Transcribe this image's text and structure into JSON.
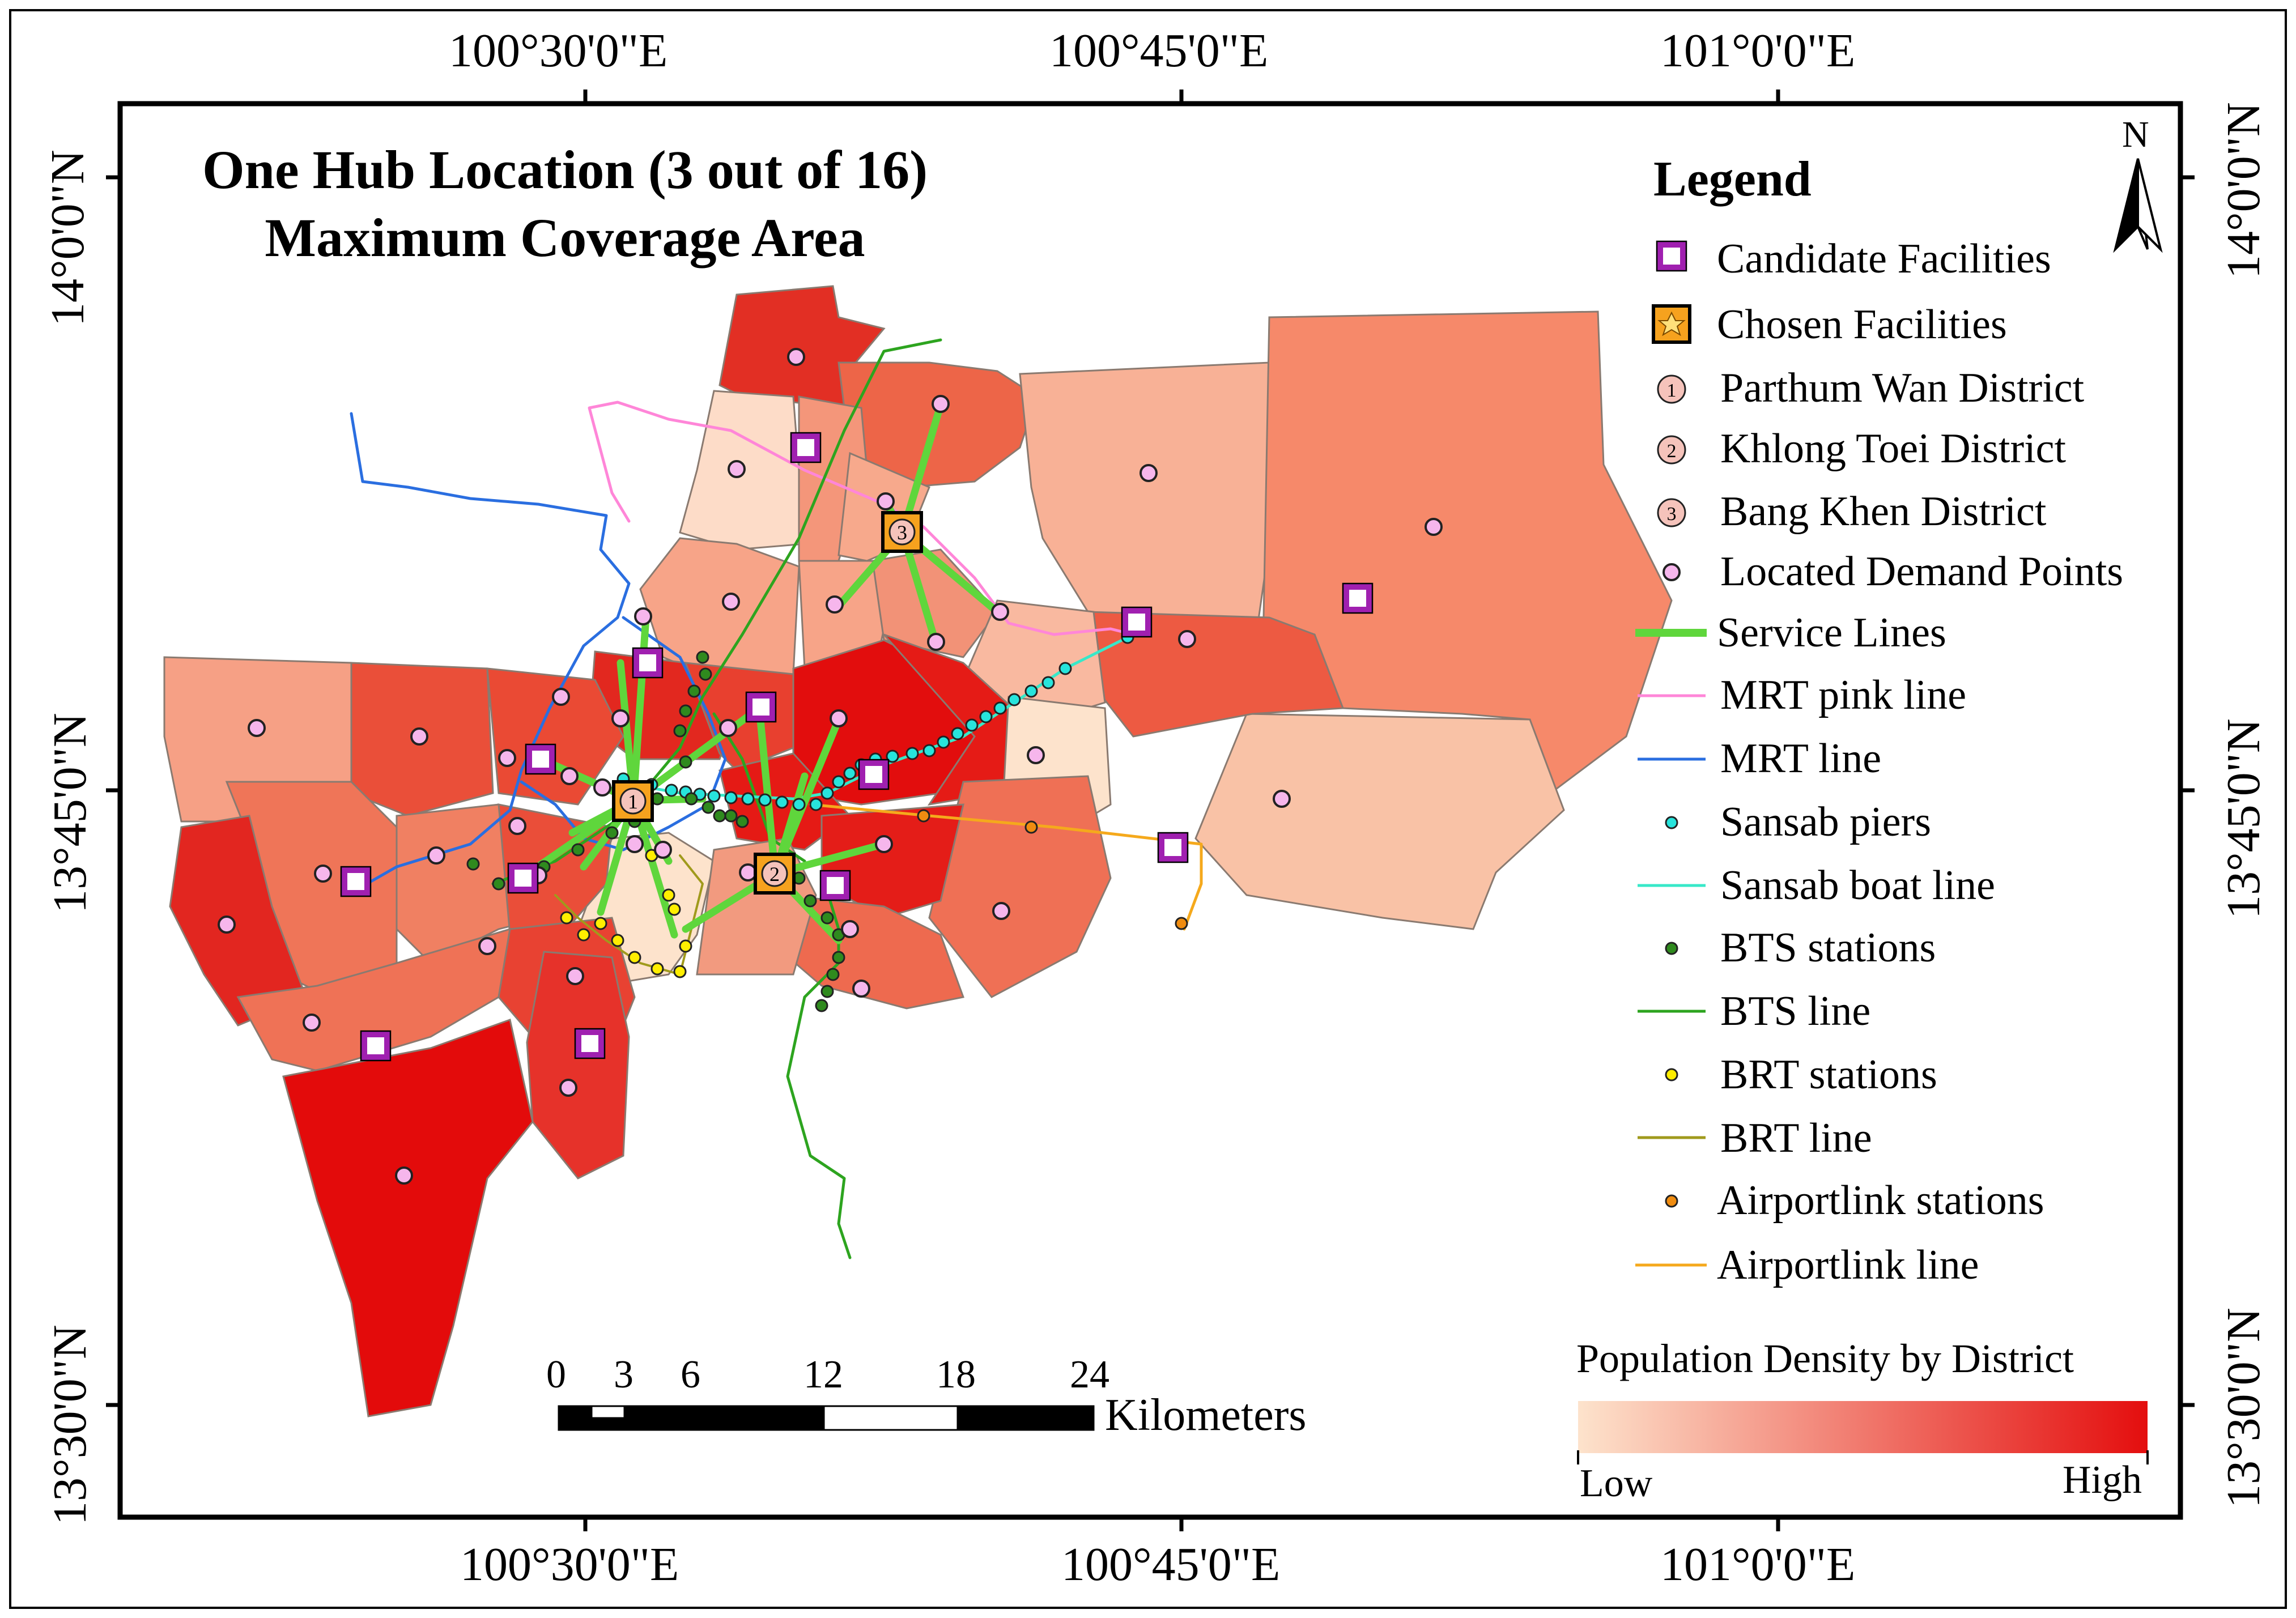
{
  "title": {
    "line1": "One Hub Location (3 out of 16)",
    "line2": "Maximum Coverage Area"
  },
  "graticule": {
    "lon_top": [
      "100°30'0\"E",
      "100°45'0\"E",
      "101°0'0\"E"
    ],
    "lon_bottom": [
      "100°30'0\"E",
      "100°45'0\"E",
      "101°0'0\"E"
    ],
    "lat_left": [
      "14°0'0\"N",
      "13°45'0\"N",
      "13°30'0\"N"
    ],
    "lat_right": [
      "14°0'0\"N",
      "13°45'0\"N",
      "13°30'0\"N"
    ]
  },
  "north_arrow": {
    "label": "N"
  },
  "legend": {
    "title": "Legend",
    "items": [
      {
        "label": "Candidate Facilities",
        "symbol": "candidate-facility-icon"
      },
      {
        "label": "Chosen Facilities",
        "symbol": "chosen-facility-icon"
      },
      {
        "label": "Parthum Wan District",
        "symbol": "district-1-icon",
        "number": "1"
      },
      {
        "label": "Khlong Toei District",
        "symbol": "district-2-icon",
        "number": "2"
      },
      {
        "label": "Bang Khen District",
        "symbol": "district-3-icon",
        "number": "3"
      },
      {
        "label": "Located Demand Points",
        "symbol": "demand-point-icon"
      },
      {
        "label": "Service Lines",
        "symbol": "service-line-icon"
      },
      {
        "label": "MRT pink line",
        "symbol": "mrt-pink-line-icon"
      },
      {
        "label": "MRT line",
        "symbol": "mrt-line-icon"
      },
      {
        "label": "Sansab piers",
        "symbol": "sansab-pier-icon"
      },
      {
        "label": "Sansab boat line",
        "symbol": "sansab-boat-line-icon"
      },
      {
        "label": "BTS stations",
        "symbol": "bts-station-icon"
      },
      {
        "label": "BTS line",
        "symbol": "bts-line-icon"
      },
      {
        "label": "BRT stations",
        "symbol": "brt-station-icon"
      },
      {
        "label": "BRT line",
        "symbol": "brt-line-icon"
      },
      {
        "label": "Airportlink stations",
        "symbol": "airportlink-station-icon"
      },
      {
        "label": "Airportlink line",
        "symbol": "airportlink-line-icon"
      }
    ]
  },
  "scale_bar": {
    "ticks": [
      "0",
      "3",
      "6",
      "12",
      "18",
      "24"
    ],
    "unit": "Kilometers"
  },
  "density_ramp": {
    "title": "Population Density by District",
    "low": "Low",
    "high": "High",
    "color_low": "#fde3cc",
    "color_high": "#e40e0e"
  },
  "colors": {
    "candidate_border": "#a020b0",
    "candidate_fill": "#ffffff",
    "chosen_fill": "#f6a21e",
    "demand_fill": "#f6b6ec",
    "service": "#5fd63c",
    "mrt_pink": "#ff86d8",
    "mrt": "#2a6ee0",
    "sansab_fill": "#27e4dc",
    "sansab_line": "#38e8c8",
    "bts_fill": "#2f8a1e",
    "bts_line": "#2da41f",
    "brt_fill": "#ffee00",
    "brt_line": "#a09a1c",
    "airport_fill": "#f08c10",
    "airport_line": "#f5a91c"
  }
}
